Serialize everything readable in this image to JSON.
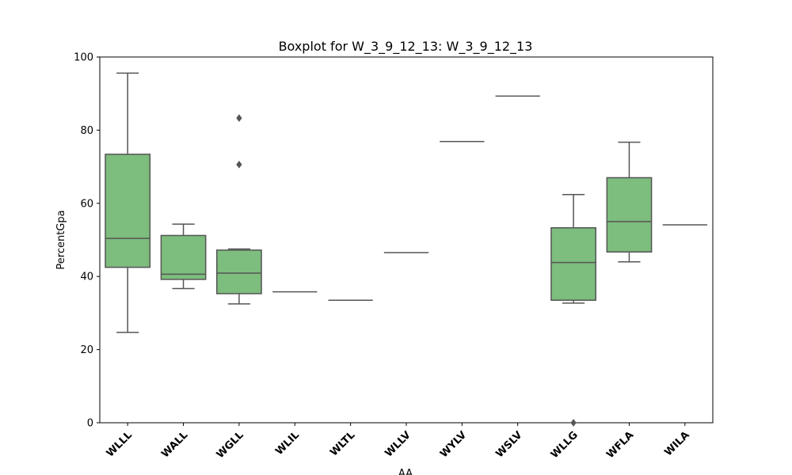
{
  "chart_data": {
    "type": "boxplot",
    "title": "Boxplot for W_3_9_12_13: W_3_9_12_13",
    "xlabel": "AA",
    "ylabel": "PercentGpa",
    "ylim": [
      0,
      100
    ],
    "yticks": [
      0,
      20,
      40,
      60,
      80,
      100
    ],
    "grid": false,
    "box_color": "#7dbd7d",
    "line_color": "#555555",
    "categories": [
      "WLLL",
      "WALL",
      "WGLL",
      "WLIL",
      "WLTL",
      "WLLV",
      "WYLV",
      "WSLV",
      "WLLG",
      "WFLA",
      "WILA"
    ],
    "boxes": [
      {
        "category": "WLLL",
        "whisker_low": 24.7,
        "q1": 42.5,
        "median": 50.4,
        "q3": 73.4,
        "whisker_high": 95.6,
        "outliers": []
      },
      {
        "category": "WALL",
        "whisker_low": 36.7,
        "q1": 39.2,
        "median": 40.6,
        "q3": 51.2,
        "whisker_high": 54.3,
        "outliers": []
      },
      {
        "category": "WGLL",
        "whisker_low": 32.5,
        "q1": 35.3,
        "median": 40.9,
        "q3": 47.2,
        "whisker_high": 47.5,
        "outliers": [
          83.3,
          70.6
        ]
      },
      {
        "category": "WLIL",
        "whisker_low": 35.8,
        "q1": 35.8,
        "median": 35.8,
        "q3": 35.8,
        "whisker_high": 35.8,
        "outliers": []
      },
      {
        "category": "WLTL",
        "whisker_low": 33.5,
        "q1": 33.5,
        "median": 33.5,
        "q3": 33.5,
        "whisker_high": 33.5,
        "outliers": []
      },
      {
        "category": "WLLV",
        "whisker_low": 46.5,
        "q1": 46.5,
        "median": 46.5,
        "q3": 46.5,
        "whisker_high": 46.5,
        "outliers": []
      },
      {
        "category": "WYLV",
        "whisker_low": 76.9,
        "q1": 76.9,
        "median": 76.9,
        "q3": 76.9,
        "whisker_high": 76.9,
        "outliers": []
      },
      {
        "category": "WSLV",
        "whisker_low": 89.3,
        "q1": 89.3,
        "median": 89.3,
        "q3": 89.3,
        "whisker_high": 89.3,
        "outliers": []
      },
      {
        "category": "WLLG",
        "whisker_low": 32.7,
        "q1": 33.5,
        "median": 43.8,
        "q3": 53.3,
        "whisker_high": 62.4,
        "outliers": [
          0.0
        ]
      },
      {
        "category": "WFLA",
        "whisker_low": 44.0,
        "q1": 46.7,
        "median": 55.0,
        "q3": 67.0,
        "whisker_high": 76.7,
        "outliers": []
      },
      {
        "category": "WILA",
        "whisker_low": 54.1,
        "q1": 54.1,
        "median": 54.1,
        "q3": 54.1,
        "whisker_high": 54.1,
        "outliers": []
      }
    ]
  }
}
